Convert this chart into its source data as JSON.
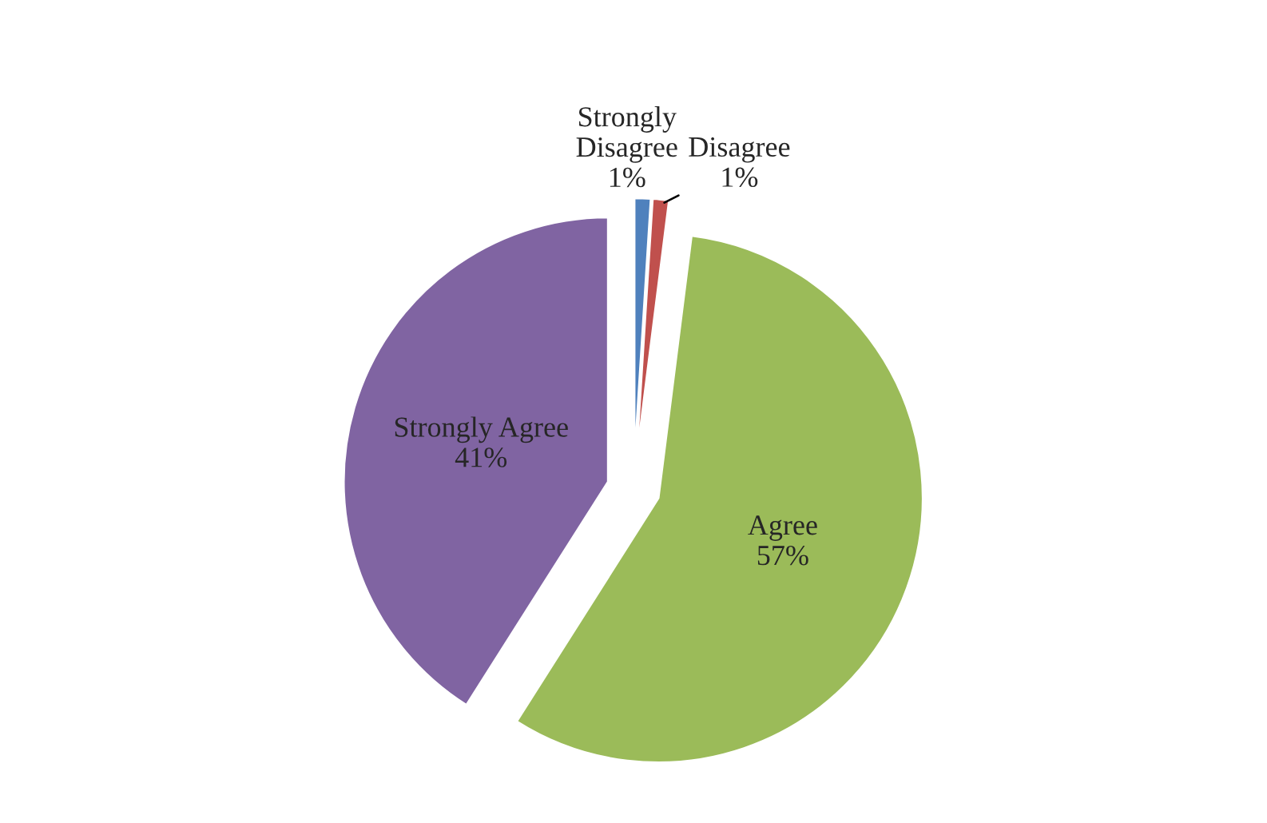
{
  "chart_data": {
    "type": "pie",
    "categories": [
      "Strongly Disagree",
      "Disagree",
      "Agree",
      "Strongly Agree"
    ],
    "values": [
      1,
      1,
      57,
      41
    ],
    "value_labels": [
      "1%",
      "1%",
      "57%",
      "41%"
    ],
    "colors": [
      "#4f81bd",
      "#c0504d",
      "#9bbb59",
      "#8064a2"
    ],
    "legend": false
  }
}
